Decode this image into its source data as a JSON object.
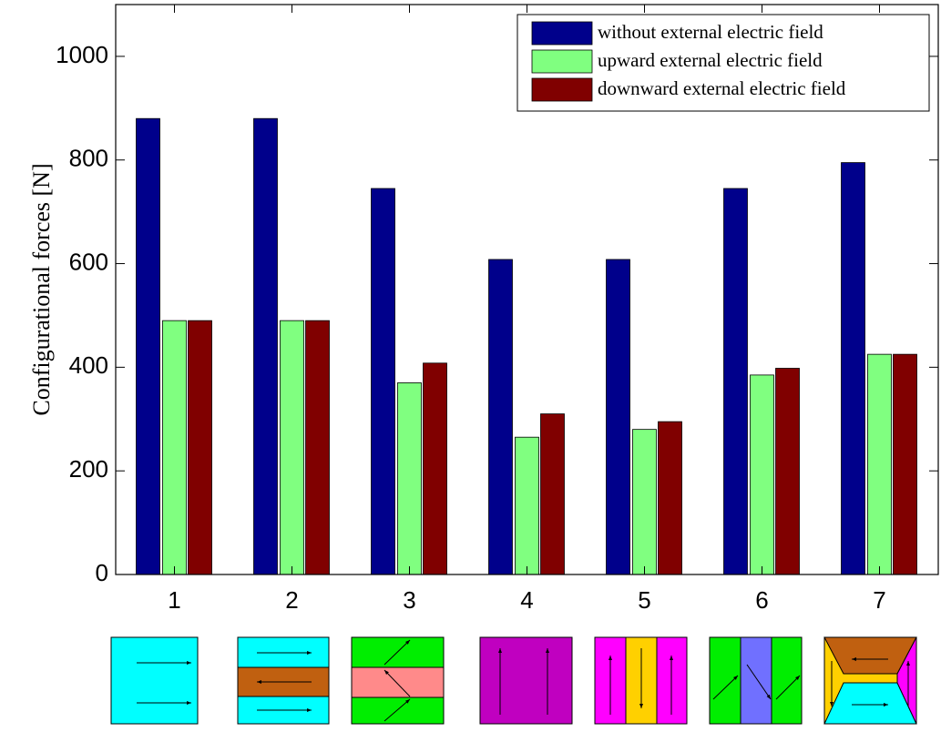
{
  "chart_data": {
    "type": "bar",
    "y_label": "Configurational forces [N]",
    "categories": [
      "1",
      "2",
      "3",
      "4",
      "5",
      "6",
      "7"
    ],
    "series": [
      {
        "name": "without external electric field",
        "color": "#00008b",
        "values": [
          880,
          880,
          745,
          608,
          608,
          745,
          795
        ]
      },
      {
        "name": "upward external electric field",
        "color": "#80ff80",
        "values": [
          490,
          490,
          370,
          265,
          280,
          385,
          425
        ]
      },
      {
        "name": "downward external electric field",
        "color": "#800000",
        "values": [
          490,
          490,
          408,
          310,
          295,
          398,
          425
        ]
      }
    ],
    "ylim": [
      0,
      1100
    ],
    "yticks": [
      0,
      200,
      400,
      600,
      800,
      1000
    ],
    "grid": false,
    "legend": "upper right"
  }
}
